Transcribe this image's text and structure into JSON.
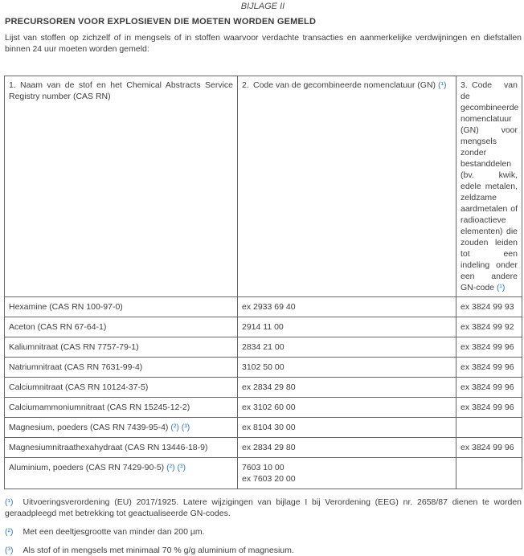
{
  "page": {
    "annex_label": "BIJLAGE II",
    "heading": "PRECURSOREN VOOR EXPLOSIEVEN DIE MOETEN WORDEN GEMELD",
    "intro": "Lijst van stoffen op zichzelf of in mengsels of in stoffen waarvoor verdachte transacties en aanmerkelijke verdwijningen en diefstallen binnen 24 uur moeten worden gemeld:"
  },
  "colors": {
    "text": "#3d3d3d",
    "table_border": "#666666",
    "footnote_link_blue": "#2d7cc1"
  },
  "table": {
    "headers": [
      {
        "text": "1. Naam van de stof en het Chemical Abstracts Service Registry number (CAS RN)"
      },
      {
        "text": "2. Code van de gecombineerde nomenclatuur (GN)",
        "ref": "(¹)"
      },
      {
        "text": "3. Code van de gecombineerde nomenclatuur (GN) voor mengsels zonder bestanddelen (bv. kwik, edele metalen, zeldzame aardmetalen of radioactieve elementen) die zouden leiden tot een indeling onder een andere GN-code",
        "ref": "(¹)"
      }
    ],
    "rows": [
      {
        "name": "Hexamine (CAS RN 100-97-0)",
        "cn": "ex 2933 69 40",
        "cn_mix": "ex 3824 99 93"
      },
      {
        "name": "Aceton (CAS RN 67-64-1)",
        "cn": "2914 11 00",
        "cn_mix": "ex 3824 99 92"
      },
      {
        "name": "Kaliumnitraat (CAS RN 7757-79-1)",
        "cn": "2834 21 00",
        "cn_mix": "ex 3824 99 96"
      },
      {
        "name": "Natriumnitraat (CAS RN 7631-99-4)",
        "cn": "3102 50 00",
        "cn_mix": "ex 3824 99 96"
      },
      {
        "name": "Calciumnitraat (CAS RN 10124-37-5)",
        "cn": "ex 2834 29 80",
        "cn_mix": "ex 3824 99 96"
      },
      {
        "name": "Calciumammoniumnitraat (CAS RN 15245-12-2)",
        "cn": "ex 3102 60 00",
        "cn_mix": "ex 3824 99 96"
      },
      {
        "name": "Magnesium, poeders (CAS RN 7439-95-4)",
        "refs": "(²) (³)",
        "cn": "ex 8104 30 00",
        "cn_mix": ""
      },
      {
        "name": "Magnesiumnitraathexahydraat (CAS RN 13446-18-9)",
        "cn": "ex 2834 29 80",
        "cn_mix": "ex 3824 99 96"
      },
      {
        "name": "Aluminium, poeders (CAS RN 7429-90-5)",
        "refs": "(²) (³)",
        "cn": "7603 10 00",
        "cn2": "ex 7603 20 00",
        "cn_mix": ""
      }
    ]
  },
  "footnotes": [
    {
      "marker": "(¹)",
      "text": "Uitvoeringsverordening (EU) 2017/1925. Latere wijzigingen van bijlage I bij Verordening (EEG) nr. 2658/87 dienen te worden geraadpleegd met betrekking tot geactualiseerde GN-codes."
    },
    {
      "marker": "(²)",
      "text": "Met een deeltjesgrootte van minder dan 200 µm."
    },
    {
      "marker": "(³)",
      "text": "Als stof of in mengsels met minimaal 70 % g/g aluminium of magnesium."
    }
  ]
}
